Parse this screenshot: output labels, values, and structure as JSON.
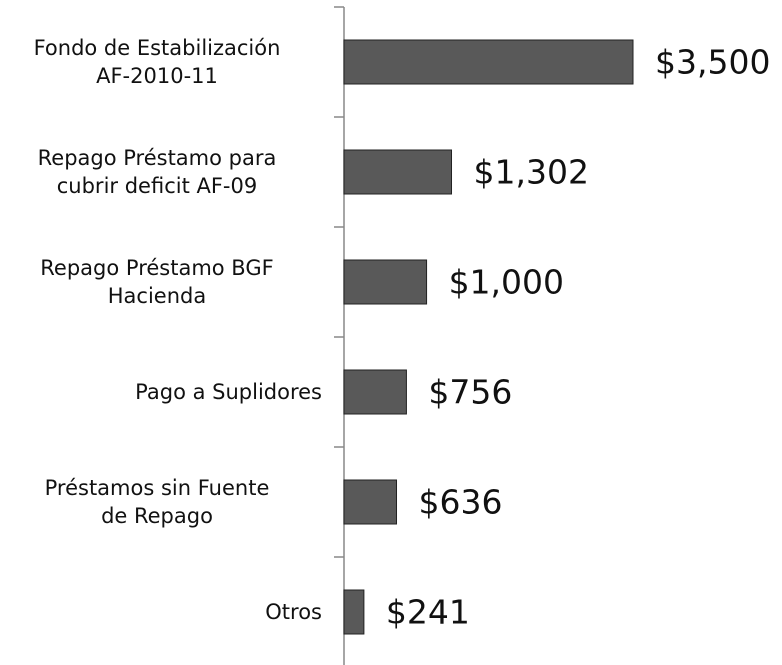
{
  "chart_data": {
    "type": "hbar",
    "categories": [
      "Fondo de Estabilización\nAF-2010-11",
      "Repago Préstamo para\ncubrir deficit AF-09",
      "Repago Préstamo BGF\nHacienda",
      "Pago a Suplidores",
      "Préstamos sin Fuente\nde Repago",
      "Otros"
    ],
    "values": [
      3500,
      1302,
      1000,
      756,
      636,
      241
    ],
    "value_labels": [
      "$3,500",
      "$1,302",
      "$1,000",
      "$756",
      "$636",
      "$241"
    ],
    "color": "#595959"
  }
}
